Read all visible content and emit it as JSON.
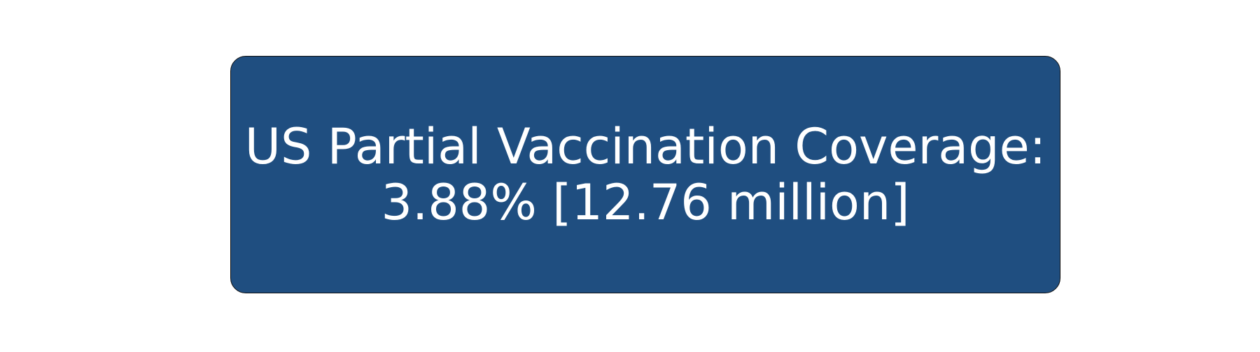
{
  "card": {
    "background_color": "#1f4e80",
    "text_color": "#ffffff",
    "line1": "US Partial Vaccination Coverage:",
    "line2": "3.88% [12.76 million]"
  }
}
